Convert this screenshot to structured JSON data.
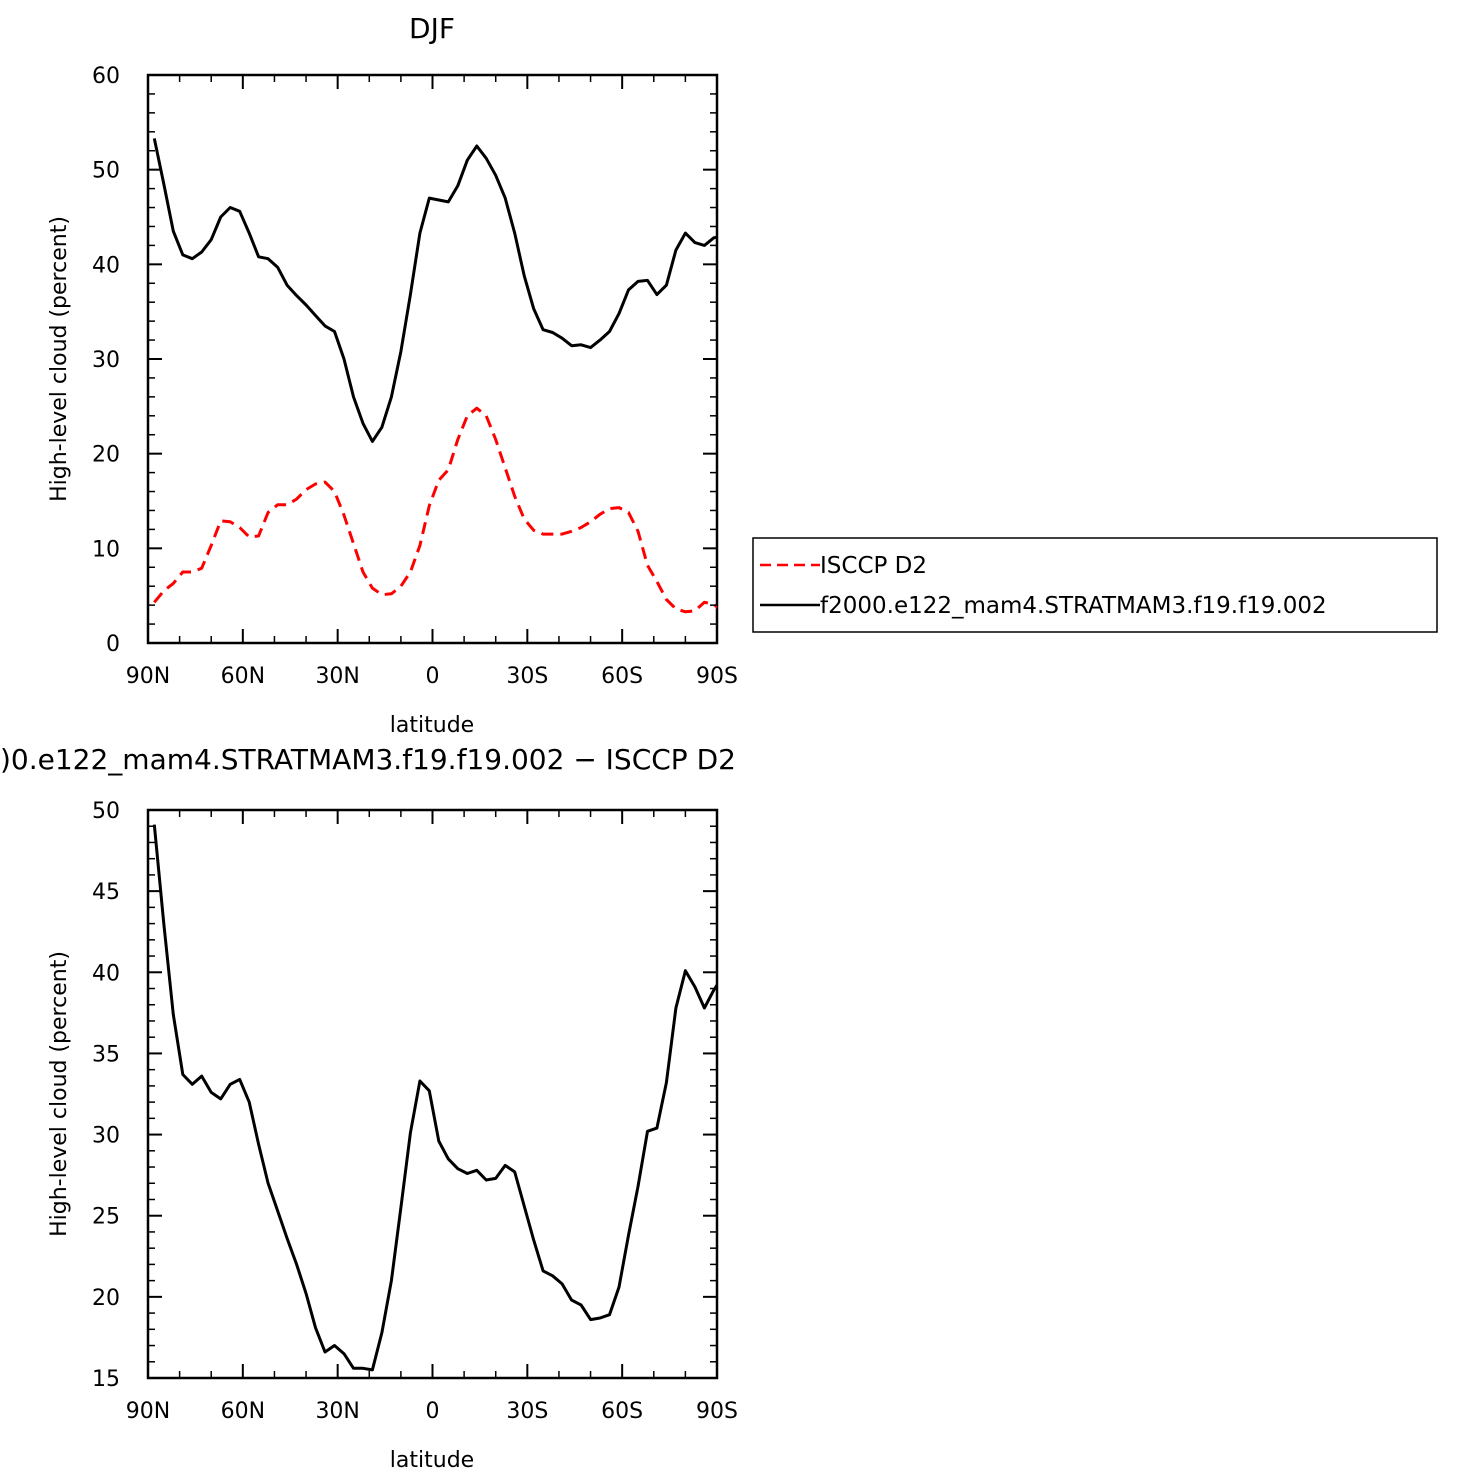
{
  "chart_data": [
    {
      "type": "line",
      "title": "DJF",
      "xlabel": "latitude",
      "ylabel": "High-level cloud (percent)",
      "xlim": [
        90,
        -90
      ],
      "ylim": [
        0,
        60
      ],
      "x_ticks": [
        90,
        60,
        30,
        0,
        -30,
        -60,
        -90
      ],
      "x_tick_labels": [
        "90N",
        "60N",
        "30N",
        "0",
        "30S",
        "60S",
        "90S"
      ],
      "y_ticks": [
        0,
        10,
        20,
        30,
        40,
        50,
        60
      ],
      "y_tick_labels": [
        "0",
        "10",
        "20",
        "30",
        "40",
        "50",
        "60"
      ],
      "grid": false,
      "legend_position": "right",
      "series": [
        {
          "name": "ISCCP D2",
          "color": "#ff0000",
          "dash": "dashed",
          "points": [
            [
              88,
              4.3
            ],
            [
              85,
              5.5
            ],
            [
              82,
              6.3
            ],
            [
              79,
              7.5
            ],
            [
              76,
              7.5
            ],
            [
              73,
              7.9
            ],
            [
              70,
              10.3
            ],
            [
              67,
              12.9
            ],
            [
              64,
              12.8
            ],
            [
              61,
              12.2
            ],
            [
              58,
              11.2
            ],
            [
              55,
              11.3
            ],
            [
              52,
              13.8
            ],
            [
              49,
              14.6
            ],
            [
              46,
              14.6
            ],
            [
              43,
              15.2
            ],
            [
              40,
              16.2
            ],
            [
              37,
              16.8
            ],
            [
              34,
              17.0
            ],
            [
              31,
              16.0
            ],
            [
              28,
              13.5
            ],
            [
              25,
              10.5
            ],
            [
              22,
              7.5
            ],
            [
              19,
              5.8
            ],
            [
              16,
              5.1
            ],
            [
              13,
              5.2
            ],
            [
              10,
              6.0
            ],
            [
              7,
              7.5
            ],
            [
              4,
              10.3
            ],
            [
              1,
              14.5
            ],
            [
              -2,
              17.2
            ],
            [
              -5,
              18.3
            ],
            [
              -8,
              21.5
            ],
            [
              -11,
              24.0
            ],
            [
              -14,
              24.8
            ],
            [
              -17,
              24.0
            ],
            [
              -20,
              21.5
            ],
            [
              -23,
              18.5
            ],
            [
              -26,
              15.5
            ],
            [
              -29,
              13.1
            ],
            [
              -32,
              11.9
            ],
            [
              -35,
              11.5
            ],
            [
              -38,
              11.5
            ],
            [
              -41,
              11.5
            ],
            [
              -44,
              11.8
            ],
            [
              -47,
              12.2
            ],
            [
              -50,
              12.8
            ],
            [
              -53,
              13.6
            ],
            [
              -56,
              14.2
            ],
            [
              -59,
              14.3
            ],
            [
              -62,
              13.8
            ],
            [
              -65,
              11.8
            ],
            [
              -68,
              8.2
            ],
            [
              -71,
              6.5
            ],
            [
              -74,
              4.6
            ],
            [
              -77,
              3.6
            ],
            [
              -80,
              3.3
            ],
            [
              -83,
              3.4
            ],
            [
              -86,
              4.3
            ],
            [
              -89,
              4.1
            ],
            [
              -92,
              3.2
            ],
            [
              -95,
              2.4
            ],
            [
              -98,
              2.8
            ],
            [
              -101,
              4.8
            ]
          ]
        },
        {
          "name": "f2000.e122_mam4.STRATMAM3.f19.f19.002",
          "color": "#000000",
          "dash": "solid",
          "points": [
            [
              88,
              53.3
            ],
            [
              85,
              48.5
            ],
            [
              82,
              43.5
            ],
            [
              79,
              41.0
            ],
            [
              76,
              40.6
            ],
            [
              73,
              41.3
            ],
            [
              70,
              42.6
            ],
            [
              67,
              45.0
            ],
            [
              64,
              46.0
            ],
            [
              61,
              45.6
            ],
            [
              58,
              43.3
            ],
            [
              55,
              40.8
            ],
            [
              52,
              40.6
            ],
            [
              49,
              39.7
            ],
            [
              46,
              37.8
            ],
            [
              43,
              36.7
            ],
            [
              40,
              35.7
            ],
            [
              37,
              34.6
            ],
            [
              34,
              33.5
            ],
            [
              31,
              32.9
            ],
            [
              28,
              30.0
            ],
            [
              25,
              26.0
            ],
            [
              22,
              23.2
            ],
            [
              19,
              21.3
            ],
            [
              16,
              22.8
            ],
            [
              13,
              26.0
            ],
            [
              10,
              30.8
            ],
            [
              7,
              36.8
            ],
            [
              4,
              43.3
            ],
            [
              1,
              47.0
            ],
            [
              -2,
              46.8
            ],
            [
              -5,
              46.6
            ],
            [
              -8,
              48.3
            ],
            [
              -11,
              51.0
            ],
            [
              -14,
              52.5
            ],
            [
              -17,
              51.2
            ],
            [
              -20,
              49.4
            ],
            [
              -23,
              47.0
            ],
            [
              -26,
              43.3
            ],
            [
              -29,
              38.8
            ],
            [
              -32,
              35.3
            ],
            [
              -35,
              33.1
            ],
            [
              -38,
              32.8
            ],
            [
              -41,
              32.2
            ],
            [
              -44,
              31.4
            ],
            [
              -47,
              31.5
            ],
            [
              -50,
              31.2
            ],
            [
              -53,
              32.0
            ],
            [
              -56,
              32.9
            ],
            [
              -59,
              34.8
            ],
            [
              -62,
              37.3
            ],
            [
              -65,
              38.2
            ],
            [
              -68,
              38.3
            ],
            [
              -71,
              36.8
            ],
            [
              -74,
              37.8
            ],
            [
              -77,
              41.5
            ],
            [
              -80,
              43.3
            ],
            [
              -83,
              42.3
            ],
            [
              -86,
              42.0
            ],
            [
              -89,
              42.8
            ],
            [
              -92,
              43.0
            ],
            [
              -95,
              41.9
            ],
            [
              -98,
              42.6
            ],
            [
              -101,
              40.4
            ]
          ]
        }
      ]
    },
    {
      "type": "line",
      "title": ")0.e122_mam4.STRATMAM3.f19.f19.002 − ISCCP D2",
      "xlabel": "latitude",
      "ylabel": "High-level cloud (percent)",
      "xlim": [
        90,
        -90
      ],
      "ylim": [
        15,
        50
      ],
      "x_ticks": [
        90,
        60,
        30,
        0,
        -30,
        -60,
        -90
      ],
      "x_tick_labels": [
        "90N",
        "60N",
        "30N",
        "0",
        "30S",
        "60S",
        "90S"
      ],
      "y_ticks": [
        15,
        20,
        25,
        30,
        35,
        40,
        45,
        50
      ],
      "y_tick_labels": [
        "15",
        "20",
        "25",
        "30",
        "35",
        "40",
        "45",
        "50"
      ],
      "grid": false,
      "series": [
        {
          "color": "#000000",
          "dash": "solid",
          "points": [
            [
              88,
              49.1
            ],
            [
              85,
              43.0
            ],
            [
              82,
              37.4
            ],
            [
              79,
              33.7
            ],
            [
              76,
              33.1
            ],
            [
              73,
              33.6
            ],
            [
              70,
              32.6
            ],
            [
              67,
              32.2
            ],
            [
              64,
              33.1
            ],
            [
              61,
              33.4
            ],
            [
              58,
              32.0
            ],
            [
              55,
              29.4
            ],
            [
              52,
              27.0
            ],
            [
              49,
              25.3
            ],
            [
              46,
              23.6
            ],
            [
              43,
              22.0
            ],
            [
              40,
              20.2
            ],
            [
              37,
              18.1
            ],
            [
              34,
              16.6
            ],
            [
              31,
              17.0
            ],
            [
              28,
              16.5
            ],
            [
              25,
              15.6
            ],
            [
              22,
              15.6
            ],
            [
              19,
              15.5
            ],
            [
              16,
              17.8
            ],
            [
              13,
              21.0
            ],
            [
              10,
              25.5
            ],
            [
              7,
              30.1
            ],
            [
              4,
              33.3
            ],
            [
              1,
              32.7
            ],
            [
              -2,
              29.6
            ],
            [
              -5,
              28.5
            ],
            [
              -8,
              27.9
            ],
            [
              -11,
              27.6
            ],
            [
              -14,
              27.8
            ],
            [
              -17,
              27.2
            ],
            [
              -20,
              27.3
            ],
            [
              -23,
              28.1
            ],
            [
              -26,
              27.7
            ],
            [
              -29,
              25.6
            ],
            [
              -32,
              23.5
            ],
            [
              -35,
              21.6
            ],
            [
              -38,
              21.3
            ],
            [
              -41,
              20.8
            ],
            [
              -44,
              19.8
            ],
            [
              -47,
              19.5
            ],
            [
              -50,
              18.6
            ],
            [
              -53,
              18.7
            ],
            [
              -56,
              18.9
            ],
            [
              -59,
              20.6
            ],
            [
              -62,
              23.8
            ],
            [
              -65,
              26.8
            ],
            [
              -68,
              30.2
            ],
            [
              -71,
              30.4
            ],
            [
              -74,
              33.2
            ],
            [
              -77,
              37.8
            ],
            [
              -80,
              40.1
            ],
            [
              -83,
              39.1
            ],
            [
              -86,
              37.8
            ],
            [
              -89,
              38.9
            ],
            [
              -92,
              39.8
            ],
            [
              -95,
              39.6
            ],
            [
              -98,
              39.7
            ],
            [
              -101,
              35.8
            ]
          ]
        }
      ]
    }
  ]
}
